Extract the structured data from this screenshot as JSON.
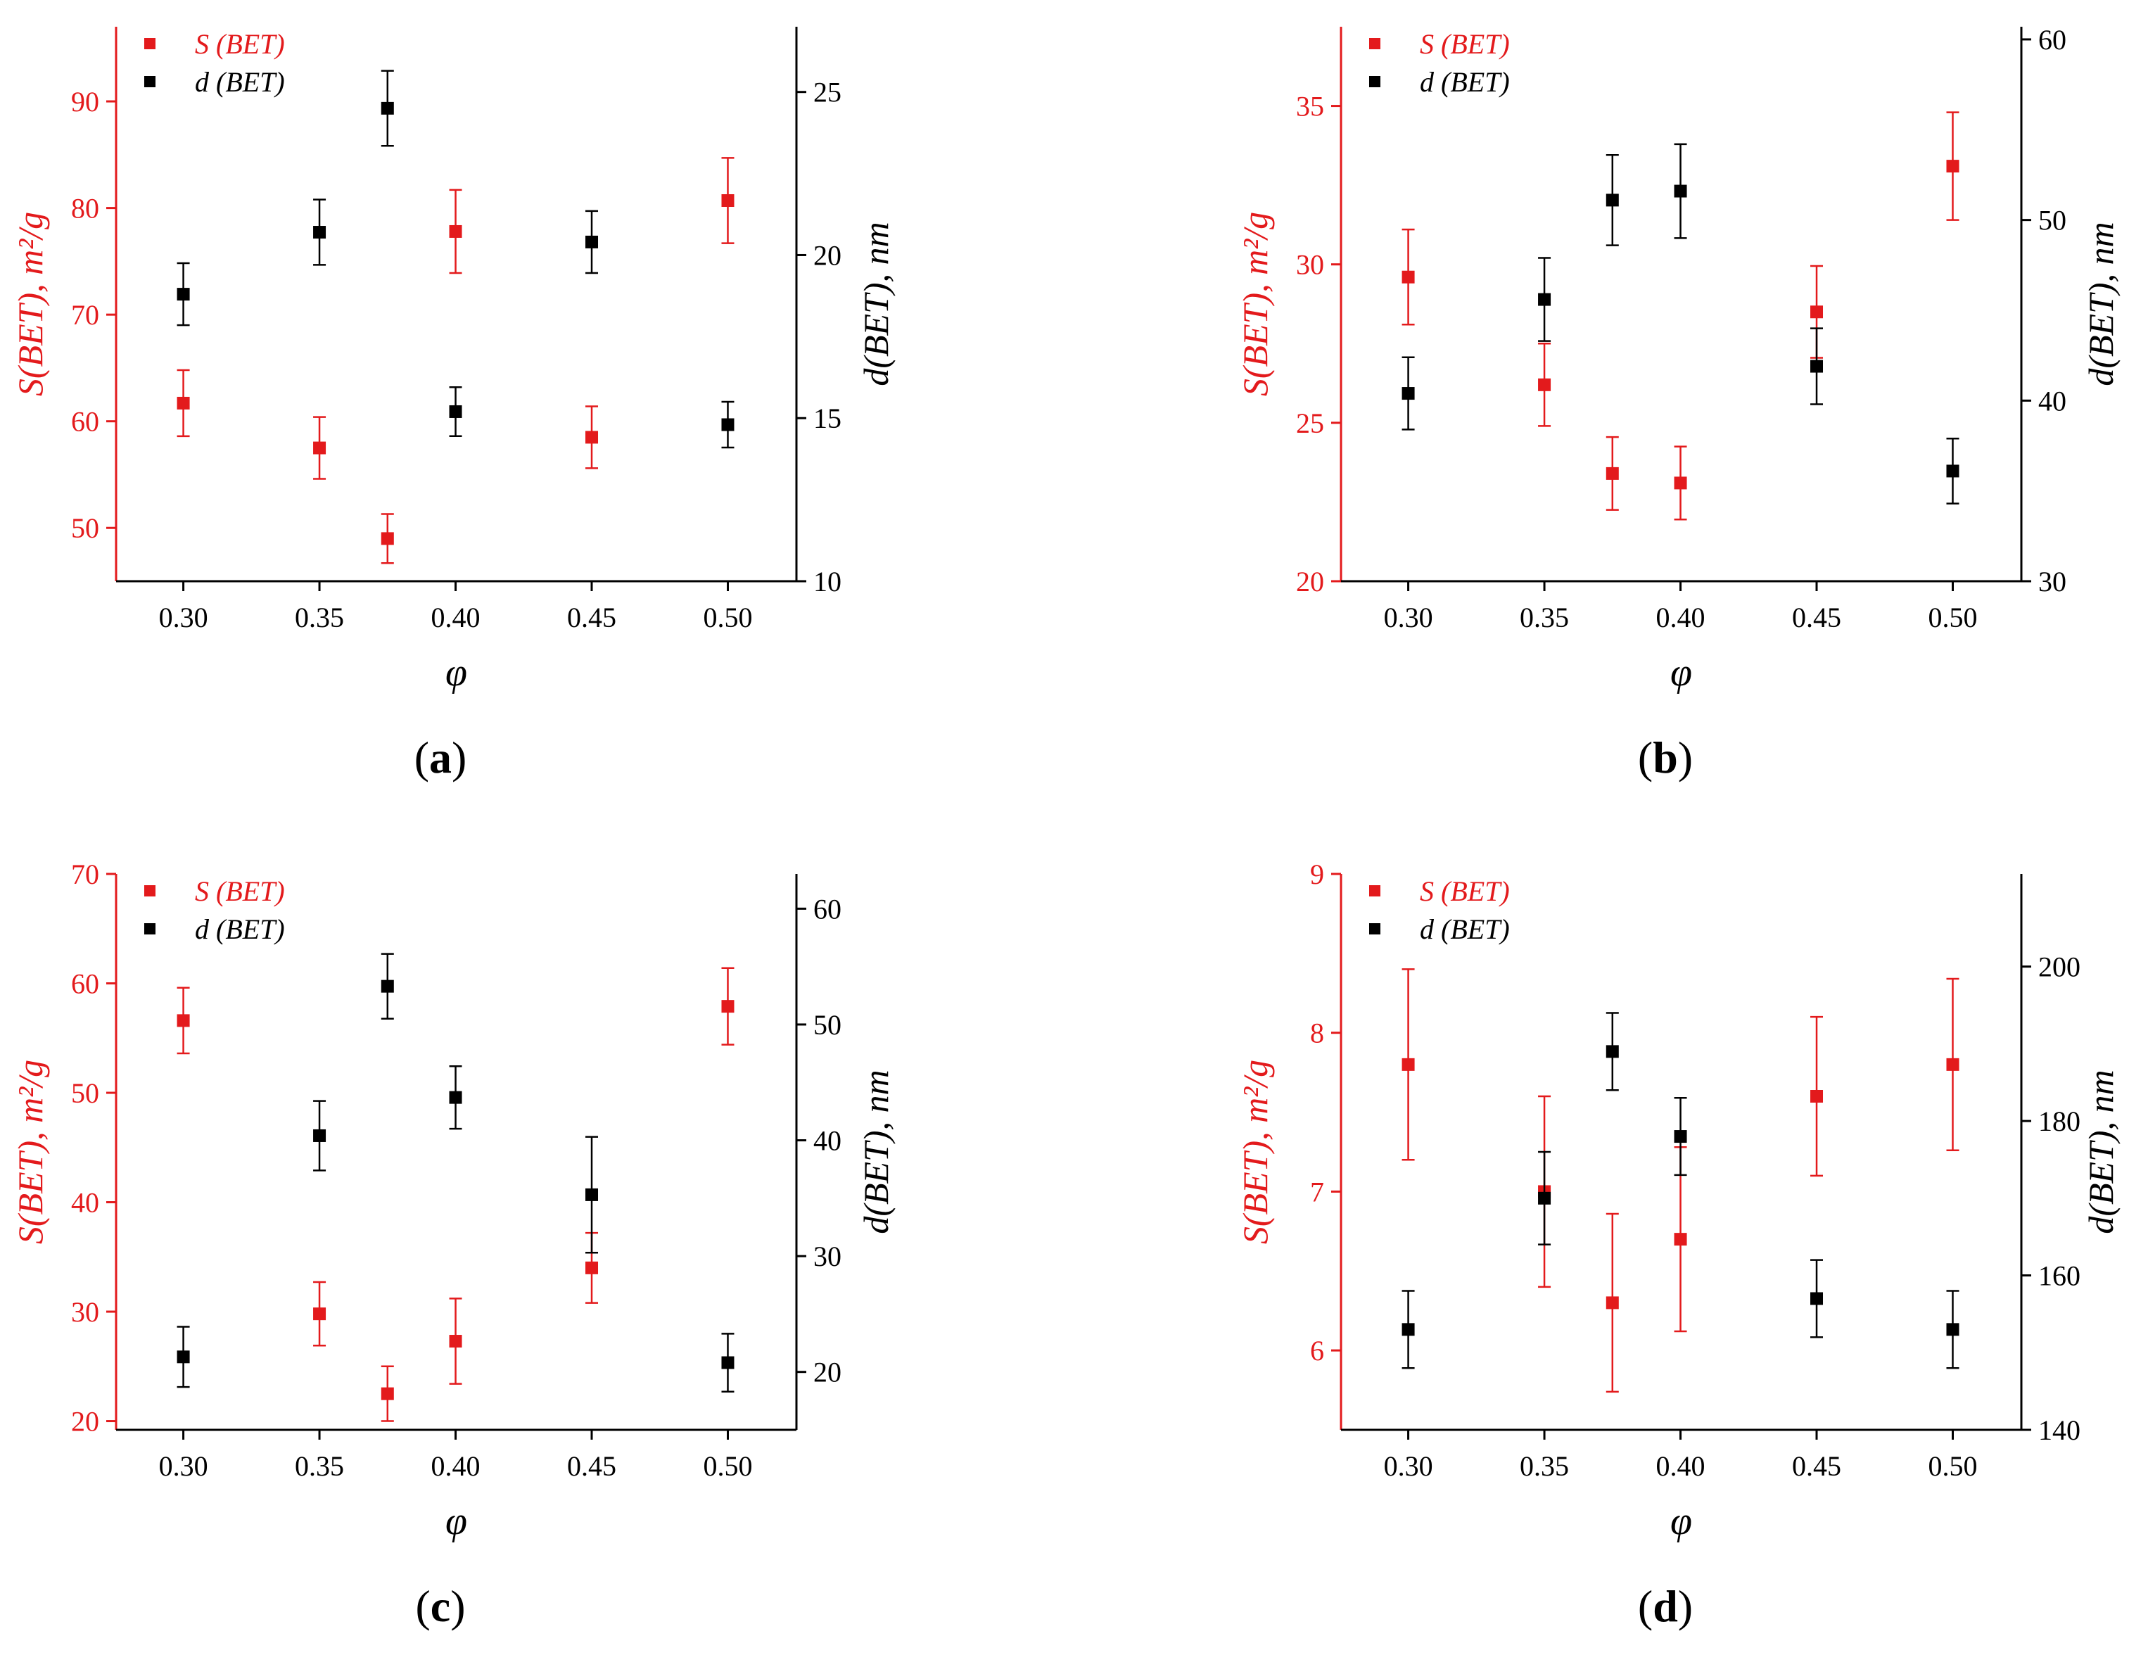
{
  "colors": {
    "s_series": "#e31a1c",
    "d_series": "#000000",
    "axis_black": "#000000"
  },
  "chart_data": [
    {
      "panel": "a",
      "type": "scatter",
      "xlabel": "φ",
      "ylabel_left": "S(BET), m²/g",
      "ylabel_right": "d(BET), nm",
      "x_ticks": [
        0.3,
        0.35,
        0.4,
        0.45,
        0.5
      ],
      "x_tick_labels": [
        "0.30",
        "0.35",
        "0.40",
        "0.45",
        "0.50"
      ],
      "xlim": [
        0.2753,
        0.5252
      ],
      "ylim_left": [
        45,
        97
      ],
      "y_ticks_left": [
        50,
        60,
        70,
        80,
        90
      ],
      "ylim_right": [
        10,
        27
      ],
      "y_ticks_right": [
        10,
        15,
        20,
        25
      ],
      "legend": [
        "S (BET)",
        "d (BET)"
      ],
      "series": [
        {
          "name": "S (BET)",
          "axis": "left",
          "x": [
            0.3,
            0.35,
            0.375,
            0.4,
            0.45,
            0.5
          ],
          "y": [
            61.7,
            57.5,
            49.0,
            77.8,
            58.5,
            80.7
          ],
          "err": [
            3.1,
            2.9,
            2.3,
            3.9,
            2.9,
            4.0
          ]
        },
        {
          "name": "d (BET)",
          "axis": "right",
          "x": [
            0.3,
            0.35,
            0.375,
            0.4,
            0.45,
            0.5
          ],
          "y": [
            18.8,
            20.7,
            24.5,
            15.2,
            20.4,
            14.8
          ],
          "err": [
            0.95,
            1.0,
            1.15,
            0.75,
            0.95,
            0.7
          ]
        }
      ]
    },
    {
      "panel": "b",
      "type": "scatter",
      "xlabel": "φ",
      "ylabel_left": "S(BET), m²/g",
      "ylabel_right": "d(BET), nm",
      "x_ticks": [
        0.3,
        0.35,
        0.4,
        0.45,
        0.5
      ],
      "x_tick_labels": [
        "0.30",
        "0.35",
        "0.40",
        "0.45",
        "0.50"
      ],
      "xlim": [
        0.2753,
        0.5252
      ],
      "ylim_left": [
        20,
        37.5
      ],
      "y_ticks_left": [
        20,
        25,
        30,
        35
      ],
      "ylim_right": [
        30,
        60.7
      ],
      "y_ticks_right": [
        30,
        40,
        50,
        60
      ],
      "legend": [
        "S (BET)",
        "d (BET)"
      ],
      "series": [
        {
          "name": "S (BET)",
          "axis": "left",
          "x": [
            0.3,
            0.35,
            0.375,
            0.4,
            0.45,
            0.5
          ],
          "y": [
            29.6,
            26.2,
            23.4,
            23.1,
            28.5,
            33.1
          ],
          "err": [
            1.5,
            1.3,
            1.15,
            1.15,
            1.45,
            1.7
          ]
        },
        {
          "name": "d (BET)",
          "axis": "right",
          "x": [
            0.3,
            0.35,
            0.375,
            0.4,
            0.45,
            0.5
          ],
          "y": [
            40.4,
            45.6,
            51.1,
            51.6,
            41.9,
            36.1
          ],
          "err": [
            2.0,
            2.3,
            2.5,
            2.6,
            2.1,
            1.8
          ]
        }
      ]
    },
    {
      "panel": "c",
      "type": "scatter",
      "xlabel": "φ",
      "ylabel_left": "S(BET), m²/g",
      "ylabel_right": "d(BET), nm",
      "x_ticks": [
        0.3,
        0.35,
        0.4,
        0.45,
        0.5
      ],
      "x_tick_labels": [
        "0.30",
        "0.35",
        "0.40",
        "0.45",
        "0.50"
      ],
      "xlim": [
        0.2753,
        0.5252
      ],
      "ylim_left": [
        19.2,
        70
      ],
      "y_ticks_left": [
        20,
        30,
        40,
        50,
        60,
        70
      ],
      "ylim_right": [
        15,
        63
      ],
      "y_ticks_right": [
        20,
        30,
        40,
        50,
        60
      ],
      "legend": [
        "S (BET)",
        "d (BET)"
      ],
      "series": [
        {
          "name": "S (BET)",
          "axis": "left",
          "x": [
            0.3,
            0.35,
            0.375,
            0.4,
            0.45,
            0.5
          ],
          "y": [
            56.6,
            29.8,
            22.5,
            27.3,
            34.0,
            57.9
          ],
          "err": [
            3.0,
            2.9,
            2.5,
            3.9,
            3.2,
            3.5
          ]
        },
        {
          "name": "d (BET)",
          "axis": "right",
          "x": [
            0.3,
            0.35,
            0.375,
            0.4,
            0.45,
            0.5
          ],
          "y": [
            21.3,
            40.4,
            53.3,
            43.7,
            35.3,
            20.8
          ],
          "err": [
            2.6,
            3.0,
            2.8,
            2.7,
            5.0,
            2.5
          ]
        }
      ]
    },
    {
      "panel": "d",
      "type": "scatter",
      "xlabel": "φ",
      "ylabel_left": "S(BET), m²/g",
      "ylabel_right": "d(BET), nm",
      "x_ticks": [
        0.3,
        0.35,
        0.4,
        0.45,
        0.5
      ],
      "x_tick_labels": [
        "0.30",
        "0.35",
        "0.40",
        "0.45",
        "0.50"
      ],
      "xlim": [
        0.2753,
        0.5252
      ],
      "ylim_left": [
        5.5,
        9
      ],
      "y_ticks_left": [
        6,
        7,
        8,
        9
      ],
      "ylim_right": [
        140,
        212
      ],
      "y_ticks_right": [
        140,
        160,
        180,
        200
      ],
      "legend": [
        "S (BET)",
        "d (BET)"
      ],
      "series": [
        {
          "name": "S (BET)",
          "axis": "left",
          "x": [
            0.3,
            0.35,
            0.375,
            0.4,
            0.45,
            0.5
          ],
          "y": [
            7.8,
            7.0,
            6.3,
            6.7,
            7.6,
            7.8
          ],
          "err": [
            0.6,
            0.6,
            0.56,
            0.58,
            0.5,
            0.54
          ]
        },
        {
          "name": "d (BET)",
          "axis": "right",
          "x": [
            0.3,
            0.35,
            0.375,
            0.4,
            0.45,
            0.5
          ],
          "y": [
            153.0,
            170.0,
            189.0,
            178.0,
            157.0,
            153.0
          ],
          "err": [
            5.0,
            6.0,
            5.0,
            5.0,
            5.0,
            5.0
          ]
        }
      ]
    }
  ],
  "panel_labels": [
    "a",
    "b",
    "c",
    "d"
  ]
}
